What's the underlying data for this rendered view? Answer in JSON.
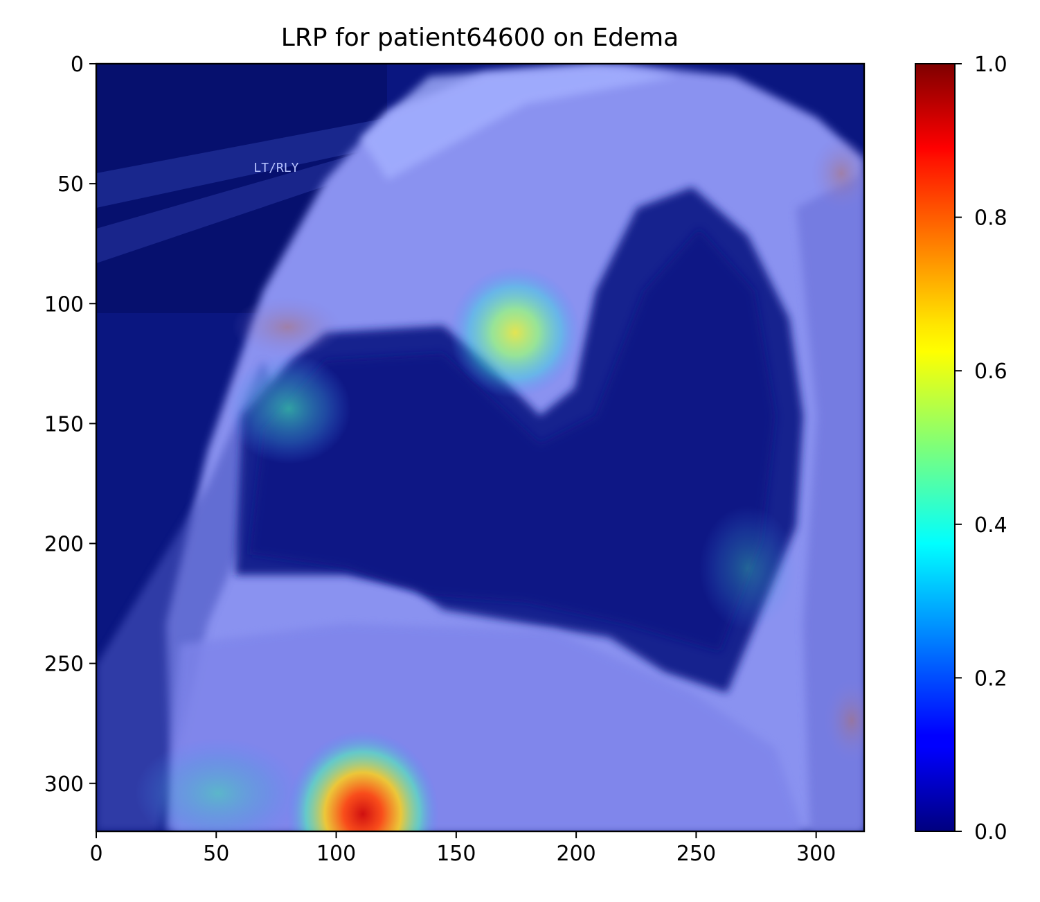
{
  "chart_data": {
    "type": "heatmap",
    "title": "LRP for patient64600 on Edema",
    "xlabel": "",
    "ylabel": "",
    "image_extent": {
      "x": [
        0,
        320
      ],
      "y": [
        0,
        320
      ]
    },
    "x_ticks": [
      0,
      50,
      100,
      150,
      200,
      250,
      300
    ],
    "y_ticks": [
      0,
      50,
      100,
      150,
      200,
      250,
      300
    ],
    "y_axis_inverted": true,
    "image_annotation": "LT/RLY",
    "annotation_pos": [
      75,
      45
    ],
    "colorbar": {
      "colormap": "jet",
      "range": [
        0.0,
        1.0
      ],
      "ticks": [
        "0.0",
        "0.2",
        "0.4",
        "0.6",
        "0.8",
        "1.0"
      ]
    },
    "relevance_hotspots": [
      {
        "x": 111,
        "y": 310,
        "value": 0.95
      },
      {
        "x": 175,
        "y": 112,
        "value": 0.65
      },
      {
        "x": 80,
        "y": 143,
        "value": 0.45
      },
      {
        "x": 80,
        "y": 110,
        "value": 0.3
      },
      {
        "x": 50,
        "y": 305,
        "value": 0.35
      },
      {
        "x": 270,
        "y": 210,
        "value": 0.25
      }
    ],
    "grid": false,
    "legend": "none"
  }
}
